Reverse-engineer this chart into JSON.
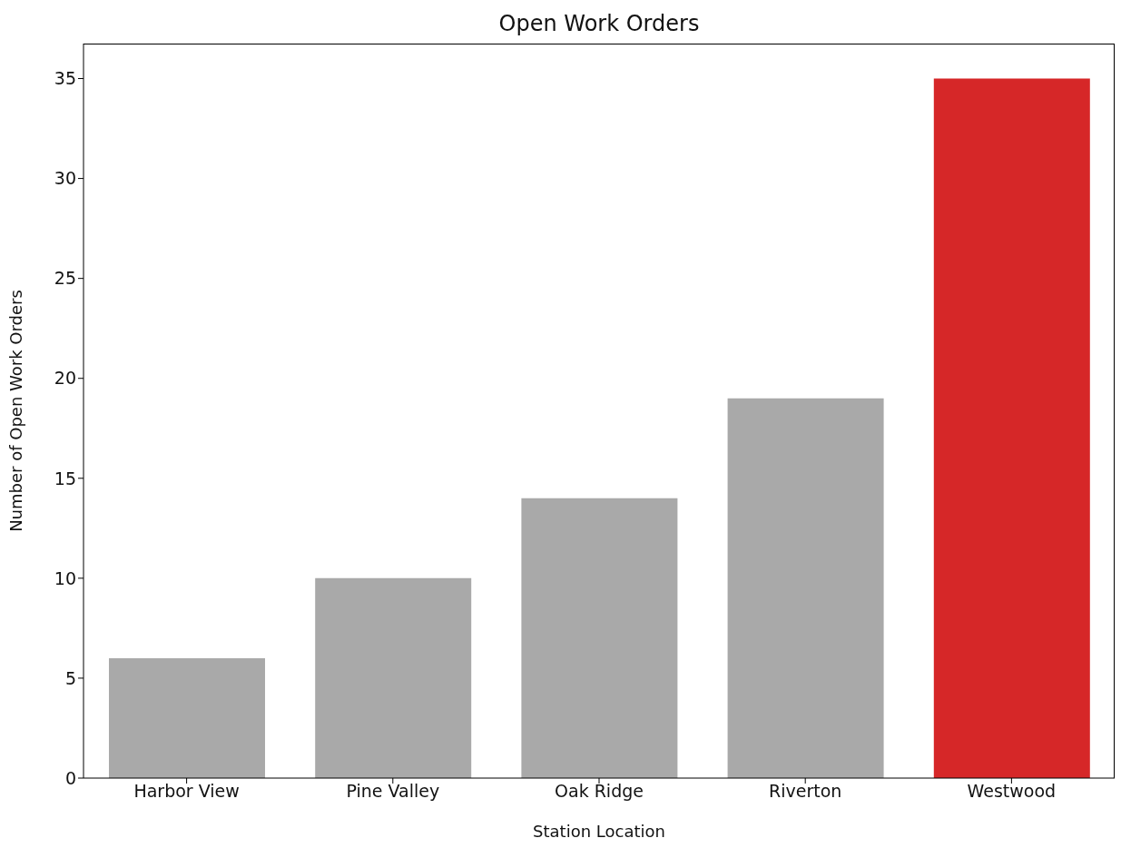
{
  "chart_data": {
    "type": "bar",
    "title": "Open Work Orders",
    "xlabel": "Station Location",
    "ylabel": "Number of Open Work Orders",
    "categories": [
      "Harbor View",
      "Pine Valley",
      "Oak Ridge",
      "Riverton",
      "Westwood"
    ],
    "values": [
      6,
      10,
      14,
      19,
      35
    ],
    "colors": [
      "#a9a9a9",
      "#a9a9a9",
      "#a9a9a9",
      "#a9a9a9",
      "#d62728"
    ],
    "ylim": [
      0,
      36.75
    ],
    "yticks": [
      0,
      5,
      10,
      15,
      20,
      25,
      30,
      35
    ]
  }
}
